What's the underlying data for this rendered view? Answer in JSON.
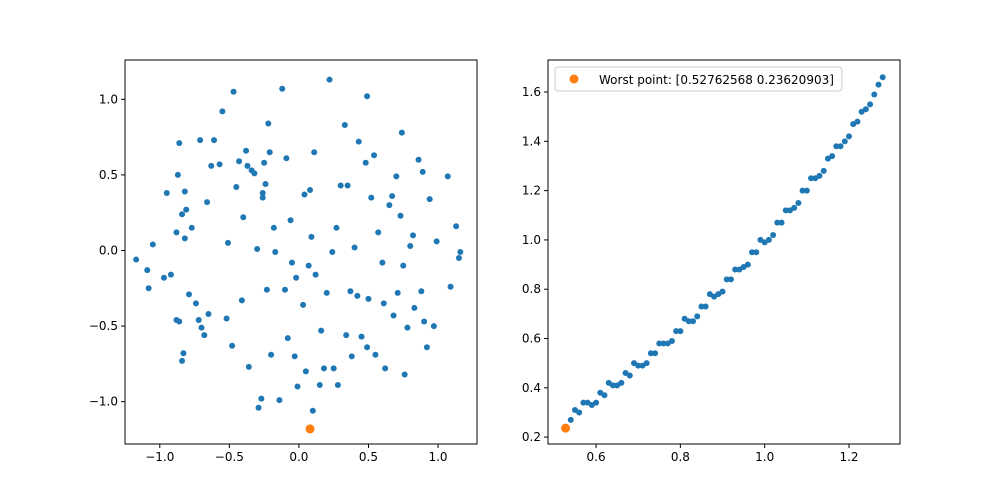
{
  "chart_data": [
    {
      "type": "scatter",
      "xlim": [
        -1.25,
        1.28
      ],
      "ylim": [
        -1.28,
        1.26
      ],
      "xticks": [
        {
          "value": -1,
          "label": "−1.0"
        },
        {
          "value": -0.5,
          "label": "−0.5"
        },
        {
          "value": 0,
          "label": "0.0"
        },
        0.5,
        {
          "value": 1,
          "label": "1.0"
        }
      ],
      "yticks": [
        {
          "value": -1,
          "label": "−1.0"
        },
        {
          "value": -0.5,
          "label": "−0.5"
        },
        {
          "value": 0,
          "label": "0.0"
        },
        0.5,
        {
          "value": 1,
          "label": "1.0"
        }
      ],
      "series": [
        {
          "color": "#1f77b4",
          "size": 3,
          "x": [
            -1.17,
            -1.09,
            -1.08,
            -1.05,
            -0.97,
            -0.95,
            -0.92,
            -0.88,
            -0.87,
            -0.86,
            -0.88,
            -0.86,
            -0.84,
            -0.83,
            -0.84,
            -0.82,
            -0.82,
            -0.81,
            -0.79,
            -0.77,
            -0.74,
            -0.71,
            -0.72,
            -0.7,
            -0.68,
            -0.65,
            -0.66,
            -0.63,
            -0.61,
            -0.57,
            -0.55,
            -0.52,
            -0.51,
            -0.48,
            -0.47,
            -0.45,
            -0.43,
            -0.41,
            -0.4,
            -0.38,
            -0.37,
            -0.36,
            -0.34,
            -0.32,
            -0.3,
            -0.29,
            -0.27,
            -0.26,
            -0.26,
            -0.25,
            -0.24,
            -0.23,
            -0.22,
            -0.21,
            -0.2,
            -0.18,
            -0.17,
            -0.14,
            -0.12,
            -0.1,
            -0.09,
            -0.08,
            -0.06,
            -0.05,
            -0.03,
            -0.02,
            -0.01,
            0.03,
            0.04,
            0.05,
            0.07,
            0.08,
            0.09,
            0.1,
            0.11,
            0.12,
            0.15,
            0.16,
            0.18,
            0.2,
            0.22,
            0.24,
            0.25,
            0.27,
            0.28,
            0.3,
            0.33,
            0.34,
            0.35,
            0.37,
            0.38,
            0.4,
            0.42,
            0.43,
            0.45,
            0.48,
            0.49,
            0.49,
            0.5,
            0.52,
            0.54,
            0.55,
            0.57,
            0.6,
            0.61,
            0.62,
            0.65,
            0.67,
            0.68,
            0.7,
            0.71,
            0.73,
            0.74,
            0.75,
            0.76,
            0.78,
            0.8,
            0.82,
            0.83,
            0.86,
            0.88,
            0.89,
            0.9,
            0.92,
            0.94,
            0.97,
            0.99,
            1.07,
            1.09,
            1.13,
            1.15,
            1.16
          ],
          "y": [
            -0.06,
            -0.13,
            -0.25,
            0.04,
            -0.18,
            0.38,
            -0.16,
            0.12,
            0.5,
            0.71,
            -0.46,
            -0.47,
            0.24,
            -0.68,
            -0.73,
            0.39,
            0.08,
            0.27,
            -0.29,
            0.15,
            -0.35,
            0.73,
            -0.46,
            -0.51,
            -0.56,
            -0.42,
            0.32,
            0.56,
            0.73,
            0.57,
            0.92,
            -0.45,
            0.05,
            -0.63,
            1.05,
            0.42,
            0.59,
            -0.33,
            0.22,
            0.66,
            0.56,
            -0.77,
            0.53,
            0.51,
            0.01,
            -1.04,
            -0.98,
            0.38,
            0.35,
            0.58,
            0.44,
            -0.26,
            0.84,
            0.65,
            -0.69,
            0.15,
            -0.01,
            -0.99,
            1.07,
            -0.26,
            0.61,
            -0.58,
            0.2,
            -0.08,
            -0.7,
            -0.18,
            -0.9,
            -0.36,
            0.37,
            -0.8,
            -0.1,
            0.4,
            0.09,
            -1.06,
            0.65,
            -0.16,
            -0.89,
            -0.53,
            -0.78,
            -0.28,
            1.13,
            -0.01,
            -0.78,
            0.15,
            -0.89,
            0.43,
            0.83,
            -0.56,
            0.43,
            -0.27,
            -0.7,
            0.02,
            -0.3,
            0.72,
            -0.57,
            0.58,
            -0.64,
            1.02,
            -0.32,
            0.35,
            0.63,
            -0.69,
            0.12,
            -0.08,
            -0.35,
            -0.78,
            0.3,
            0.36,
            -0.43,
            0.49,
            -0.28,
            0.23,
            0.78,
            -0.1,
            -0.82,
            -0.51,
            0.03,
            0.1,
            -0.38,
            0.6,
            -0.27,
            0.52,
            -0.47,
            -0.64,
            0.34,
            -0.5,
            0.06,
            0.49,
            -0.24,
            0.16,
            -0.05,
            -0.01
          ]
        },
        {
          "color": "#ff7f0e",
          "size": 4.5,
          "x": [
            0.08
          ],
          "y": [
            -1.18
          ]
        }
      ]
    },
    {
      "type": "scatter",
      "xlim": [
        0.486,
        1.321
      ],
      "ylim": [
        0.172,
        1.73
      ],
      "xticks": [
        0.6,
        0.8,
        {
          "value": 1,
          "label": "1.0"
        },
        1.2
      ],
      "yticks": [
        0.2,
        0.4,
        0.6,
        0.8,
        {
          "value": 1,
          "label": "1.0"
        },
        1.2,
        1.4,
        1.6
      ],
      "legend": "upper left",
      "series": [
        {
          "color": "#1f77b4",
          "size": 3,
          "x": [
            0.54,
            0.55,
            0.56,
            0.57,
            0.58,
            0.59,
            0.6,
            0.61,
            0.62,
            0.63,
            0.64,
            0.65,
            0.66,
            0.67,
            0.68,
            0.69,
            0.7,
            0.71,
            0.72,
            0.73,
            0.74,
            0.75,
            0.76,
            0.77,
            0.78,
            0.79,
            0.8,
            0.81,
            0.82,
            0.83,
            0.84,
            0.85,
            0.86,
            0.87,
            0.88,
            0.89,
            0.9,
            0.91,
            0.92,
            0.93,
            0.94,
            0.95,
            0.96,
            0.97,
            0.98,
            0.99,
            1.0,
            1.01,
            1.02,
            1.03,
            1.04,
            1.05,
            1.06,
            1.07,
            1.08,
            1.09,
            1.1,
            1.11,
            1.12,
            1.13,
            1.14,
            1.15,
            1.16,
            1.17,
            1.18,
            1.19,
            1.2,
            1.21,
            1.22,
            1.23,
            1.24,
            1.25,
            1.26,
            1.27,
            1.28
          ],
          "y": [
            0.27,
            0.31,
            0.3,
            0.34,
            0.34,
            0.33,
            0.34,
            0.38,
            0.37,
            0.42,
            0.41,
            0.41,
            0.42,
            0.46,
            0.45,
            0.5,
            0.49,
            0.49,
            0.5,
            0.54,
            0.54,
            0.58,
            0.58,
            0.58,
            0.59,
            0.63,
            0.63,
            0.68,
            0.67,
            0.67,
            0.69,
            0.73,
            0.73,
            0.78,
            0.77,
            0.78,
            0.79,
            0.84,
            0.84,
            0.88,
            0.88,
            0.89,
            0.9,
            0.95,
            0.95,
            1.0,
            0.99,
            1.0,
            1.02,
            1.07,
            1.07,
            1.12,
            1.12,
            1.13,
            1.15,
            1.2,
            1.2,
            1.25,
            1.25,
            1.26,
            1.28,
            1.33,
            1.34,
            1.38,
            1.38,
            1.4,
            1.42,
            1.47,
            1.48,
            1.52,
            1.53,
            1.55,
            1.59,
            1.63,
            1.66
          ]
        },
        {
          "name": "Worst point: [0.52762568 0.23620903]",
          "color": "#ff7f0e",
          "size": 4.5,
          "x": [
            0.52762568
          ],
          "y": [
            0.23620903
          ]
        }
      ]
    }
  ]
}
